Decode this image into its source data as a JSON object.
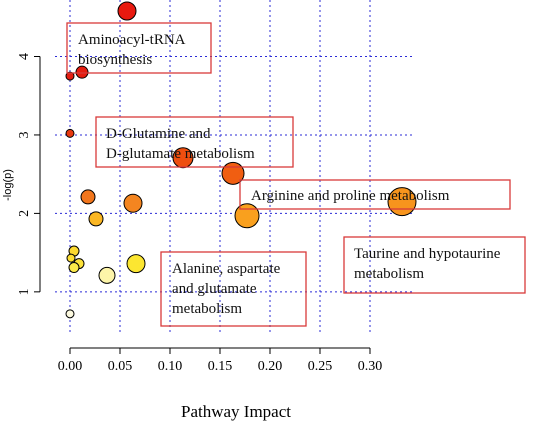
{
  "chart_data": {
    "type": "scatter",
    "xlabel": "Pathway Impact",
    "ylabel": "-log(p)",
    "xlim": [
      -0.015,
      0.345
    ],
    "ylim": [
      0.45,
      4.72
    ],
    "xticks": [
      0.0,
      0.05,
      0.1,
      0.15,
      0.2,
      0.25,
      0.3
    ],
    "xtick_labels": [
      "0.00",
      "0.05",
      "0.10",
      "0.15",
      "0.20",
      "0.25",
      "0.30"
    ],
    "yticks": [
      1,
      2,
      3,
      4
    ],
    "ytick_labels": [
      "1",
      "2",
      "3",
      "4"
    ],
    "grid": true,
    "grid_color": "#2b2bd6",
    "annotation_border_color": "#d83a3a",
    "points": [
      {
        "x": 0.057,
        "y": 4.58,
        "size": 9,
        "color": "#e8190f"
      },
      {
        "x": 0.012,
        "y": 3.8,
        "size": 6,
        "color": "#e51d10"
      },
      {
        "x": 0.0,
        "y": 3.75,
        "size": 4,
        "color": "#e51d10"
      },
      {
        "x": 0.0,
        "y": 3.02,
        "size": 4,
        "color": "#e8380f"
      },
      {
        "x": 0.113,
        "y": 2.71,
        "size": 10,
        "color": "#ee4e0f"
      },
      {
        "x": 0.163,
        "y": 2.51,
        "size": 11,
        "color": "#f05e11"
      },
      {
        "x": 0.018,
        "y": 2.21,
        "size": 7,
        "color": "#f2761c"
      },
      {
        "x": 0.063,
        "y": 2.13,
        "size": 9,
        "color": "#f48520"
      },
      {
        "x": 0.332,
        "y": 2.15,
        "size": 14,
        "color": "#f7941d"
      },
      {
        "x": 0.177,
        "y": 1.97,
        "size": 12,
        "color": "#f9a01e"
      },
      {
        "x": 0.026,
        "y": 1.93,
        "size": 7,
        "color": "#fbb724"
      },
      {
        "x": 0.004,
        "y": 1.52,
        "size": 5,
        "color": "#fcd931"
      },
      {
        "x": 0.001,
        "y": 1.43,
        "size": 4,
        "color": "#fcde34"
      },
      {
        "x": 0.009,
        "y": 1.36,
        "size": 5,
        "color": "#fde23a"
      },
      {
        "x": 0.066,
        "y": 1.36,
        "size": 9,
        "color": "#fce631"
      },
      {
        "x": 0.004,
        "y": 1.31,
        "size": 5,
        "color": "#fdea4a"
      },
      {
        "x": 0.037,
        "y": 1.21,
        "size": 8,
        "color": "#fdf5a9"
      },
      {
        "x": 0.0,
        "y": 0.72,
        "size": 4,
        "color": "#fdfae0"
      }
    ],
    "annotations": [
      {
        "lines": [
          "Aminoacyl-tRNA",
          "biosynthesis"
        ]
      },
      {
        "lines": [
          "D-Glutamine and",
          "D-glutamate metabolism"
        ]
      },
      {
        "lines": [
          "Arginine and proline metabolism"
        ]
      },
      {
        "lines": [
          "Alanine, aspartate",
          "and glutamate",
          "metabolism"
        ]
      },
      {
        "lines": [
          "Taurine and hypotaurine",
          "metabolism"
        ]
      }
    ]
  }
}
